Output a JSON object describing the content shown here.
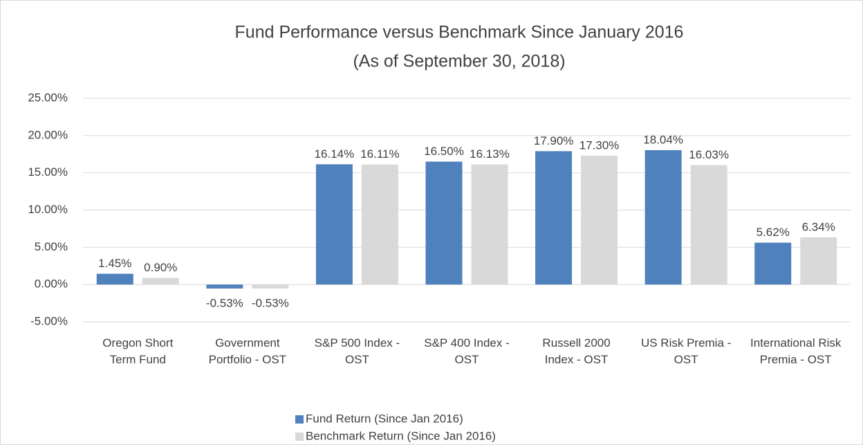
{
  "chart_data": {
    "type": "bar",
    "title": "Fund Performance versus Benchmark Since January 2016",
    "subtitle": "(As of September 30, 2018)",
    "categories": [
      "Oregon Short Term Fund",
      "Government Portfolio - OST",
      "S&P 500 Index - OST",
      "S&P 400 Index - OST",
      "Russell 2000 Index - OST",
      "US Risk Premia - OST",
      "International Risk Premia - OST"
    ],
    "series": [
      {
        "name": "Fund Return (Since Jan 2016)",
        "color": "#4f81bd",
        "values": [
          1.45,
          -0.53,
          16.14,
          16.5,
          17.9,
          18.04,
          5.62
        ],
        "value_labels": [
          "1.45%",
          "-0.53%",
          "16.14%",
          "16.50%",
          "17.90%",
          "18.04%",
          "5.62%"
        ]
      },
      {
        "name": "Benchmark Return (Since Jan 2016)",
        "color": "#d9d9d9",
        "values": [
          0.9,
          -0.53,
          16.11,
          16.13,
          17.3,
          16.03,
          6.34
        ],
        "value_labels": [
          "0.90%",
          "-0.53%",
          "16.11%",
          "16.13%",
          "17.30%",
          "16.03%",
          "6.34%"
        ]
      }
    ],
    "ylim": [
      -5,
      25
    ],
    "yticks": [
      {
        "value": -5,
        "label": "-5.00%"
      },
      {
        "value": 0,
        "label": "0.00%"
      },
      {
        "value": 5,
        "label": "5.00%"
      },
      {
        "value": 10,
        "label": "10.00%"
      },
      {
        "value": 15,
        "label": "15.00%"
      },
      {
        "value": 20,
        "label": "20.00%"
      },
      {
        "value": 25,
        "label": "25.00%"
      }
    ],
    "grid": true,
    "legend": "bottom"
  }
}
